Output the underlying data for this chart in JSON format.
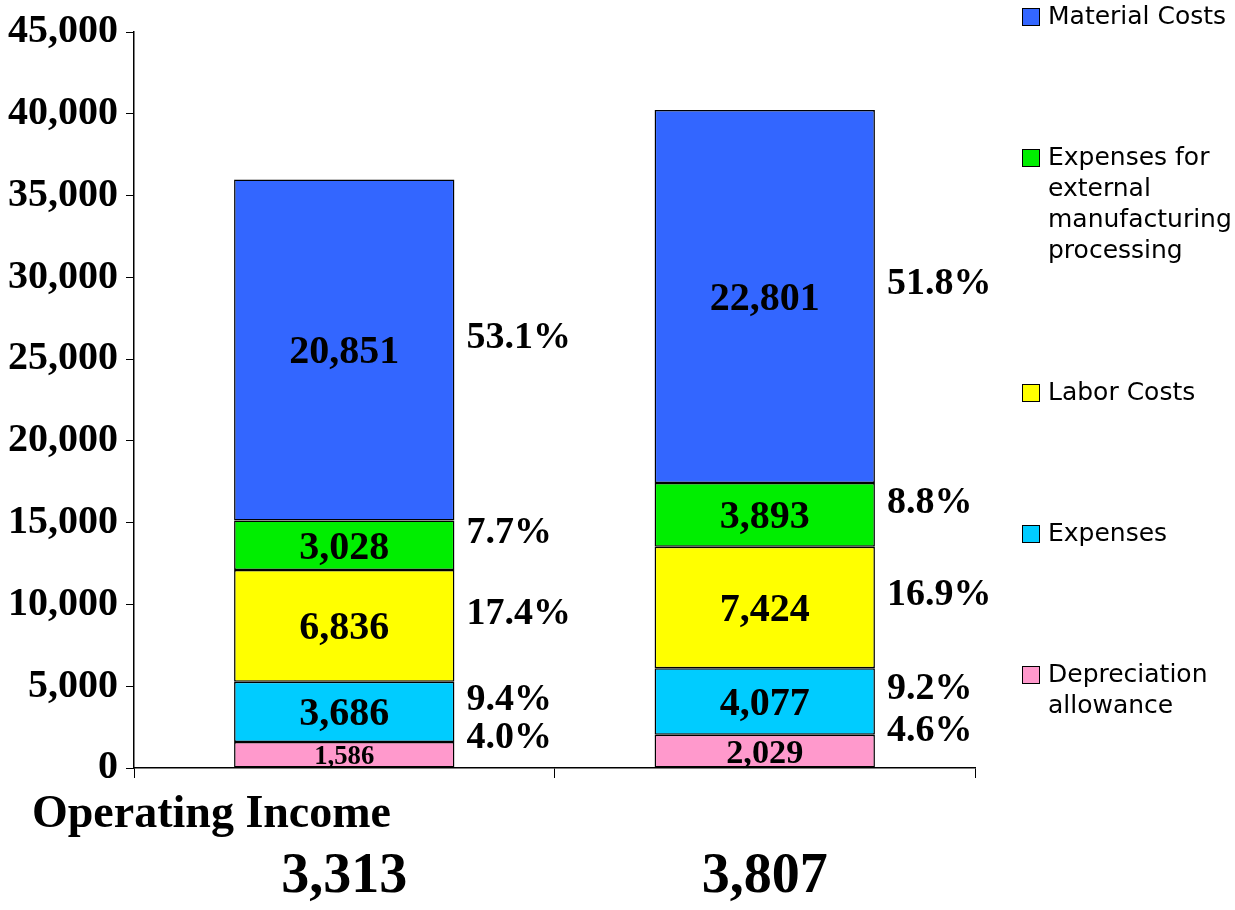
{
  "chart_data": {
    "type": "bar",
    "stacked": true,
    "categories": [
      "3,313",
      "3,807"
    ],
    "series": [
      {
        "name": "Depreciation allowance",
        "color": "#ff99cc",
        "values": [
          1586,
          2029
        ],
        "value_labels": [
          "1,586",
          "2,029"
        ]
      },
      {
        "name": "Expenses",
        "color": "#00ccff",
        "values": [
          3686,
          4077
        ],
        "value_labels": [
          "3,686",
          "4,077"
        ]
      },
      {
        "name": "Labor Costs",
        "color": "#ffff00",
        "values": [
          6836,
          7424
        ],
        "value_labels": [
          "6,836",
          "7,424"
        ]
      },
      {
        "name": "Expenses for external manufacturing processing",
        "color": "#00ee00",
        "values": [
          3028,
          3893
        ],
        "value_labels": [
          "3,028",
          "3,893"
        ]
      },
      {
        "name": "Material Costs",
        "color": "#3366ff",
        "values": [
          20851,
          22801
        ],
        "value_labels": [
          "20,851",
          "22,801"
        ]
      }
    ],
    "ylim": [
      0,
      45000
    ],
    "yticks": [
      {
        "value": 0,
        "label": "0"
      },
      {
        "value": 5000,
        "label": "5,000"
      },
      {
        "value": 10000,
        "label": "10,000"
      },
      {
        "value": 15000,
        "label": "15,000"
      },
      {
        "value": 20000,
        "label": "20,000"
      },
      {
        "value": 25000,
        "label": "25,000"
      },
      {
        "value": 30000,
        "label": "30,000"
      },
      {
        "value": 35000,
        "label": "35,000"
      },
      {
        "value": 40000,
        "label": "40,000"
      },
      {
        "value": 45000,
        "label": "45,000"
      }
    ],
    "grid": false,
    "legend": "right",
    "annotations": [
      "Operating Income",
      "4.0%",
      "9.4%",
      "17.4%",
      "7.7%",
      "53.1%",
      "4.6%",
      "9.2%",
      "16.9%",
      "8.8%",
      "51.8%"
    ]
  }
}
